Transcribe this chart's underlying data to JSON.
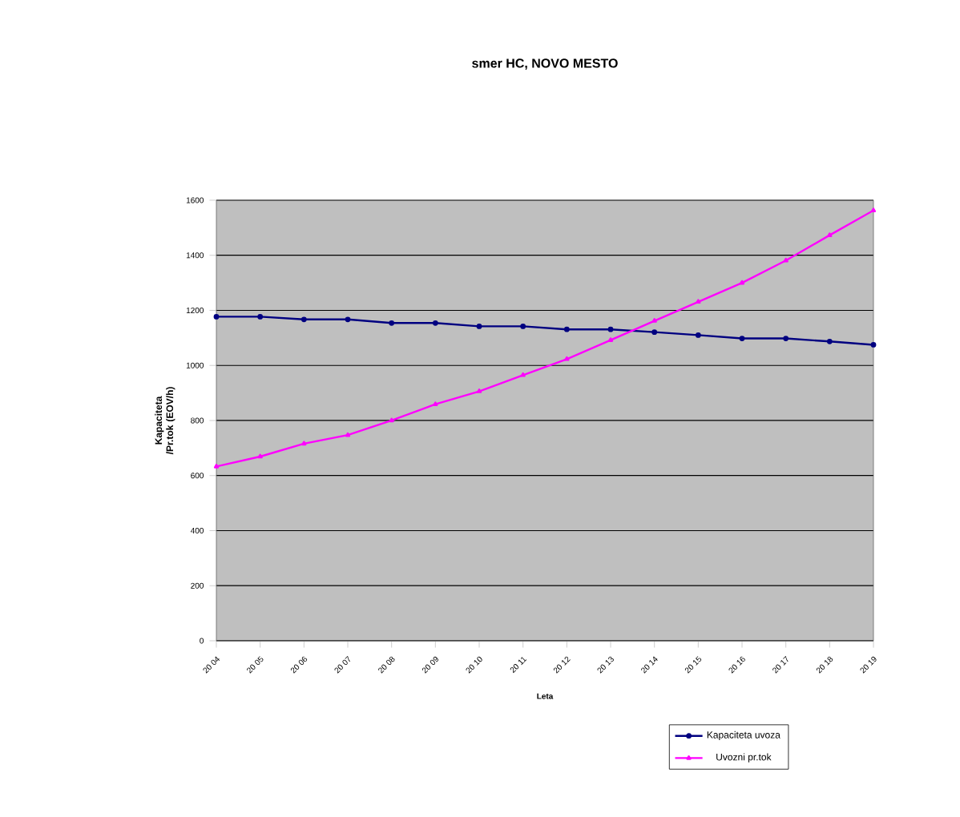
{
  "chart_data": {
    "type": "line",
    "title": "smer HC, NOVO MESTO",
    "xlabel": "Leta",
    "ylabel": "Kapaciteta /Pr.tok (EOV/h)",
    "categories": [
      "20 04",
      "20 05",
      "20 06",
      "20 07",
      "20 08",
      "20 09",
      "20 10",
      "20 11",
      "20 12",
      "20 13",
      "20 14",
      "20 15",
      "20 16",
      "20 17",
      "20 18",
      "20 19"
    ],
    "series": [
      {
        "name": "Kapaciteta uvoza",
        "color": "#000080",
        "marker": "circle",
        "values": [
          1177,
          1177,
          1167,
          1167,
          1154,
          1154,
          1142,
          1142,
          1131,
          1131,
          1121,
          1110,
          1098,
          1098,
          1087,
          1075
        ]
      },
      {
        "name": "Uvozni pr.tok",
        "color": "#ff00ff",
        "marker": "triangle",
        "values": [
          633,
          669,
          716,
          747,
          800,
          859,
          906,
          965,
          1023,
          1092,
          1162,
          1231,
          1300,
          1381,
          1473,
          1563
        ]
      }
    ],
    "ylim": [
      0,
      1600
    ],
    "yticks": [
      0,
      200,
      400,
      600,
      800,
      1000,
      1200,
      1400,
      1600
    ],
    "grid": "y",
    "legend": "bottom right"
  }
}
